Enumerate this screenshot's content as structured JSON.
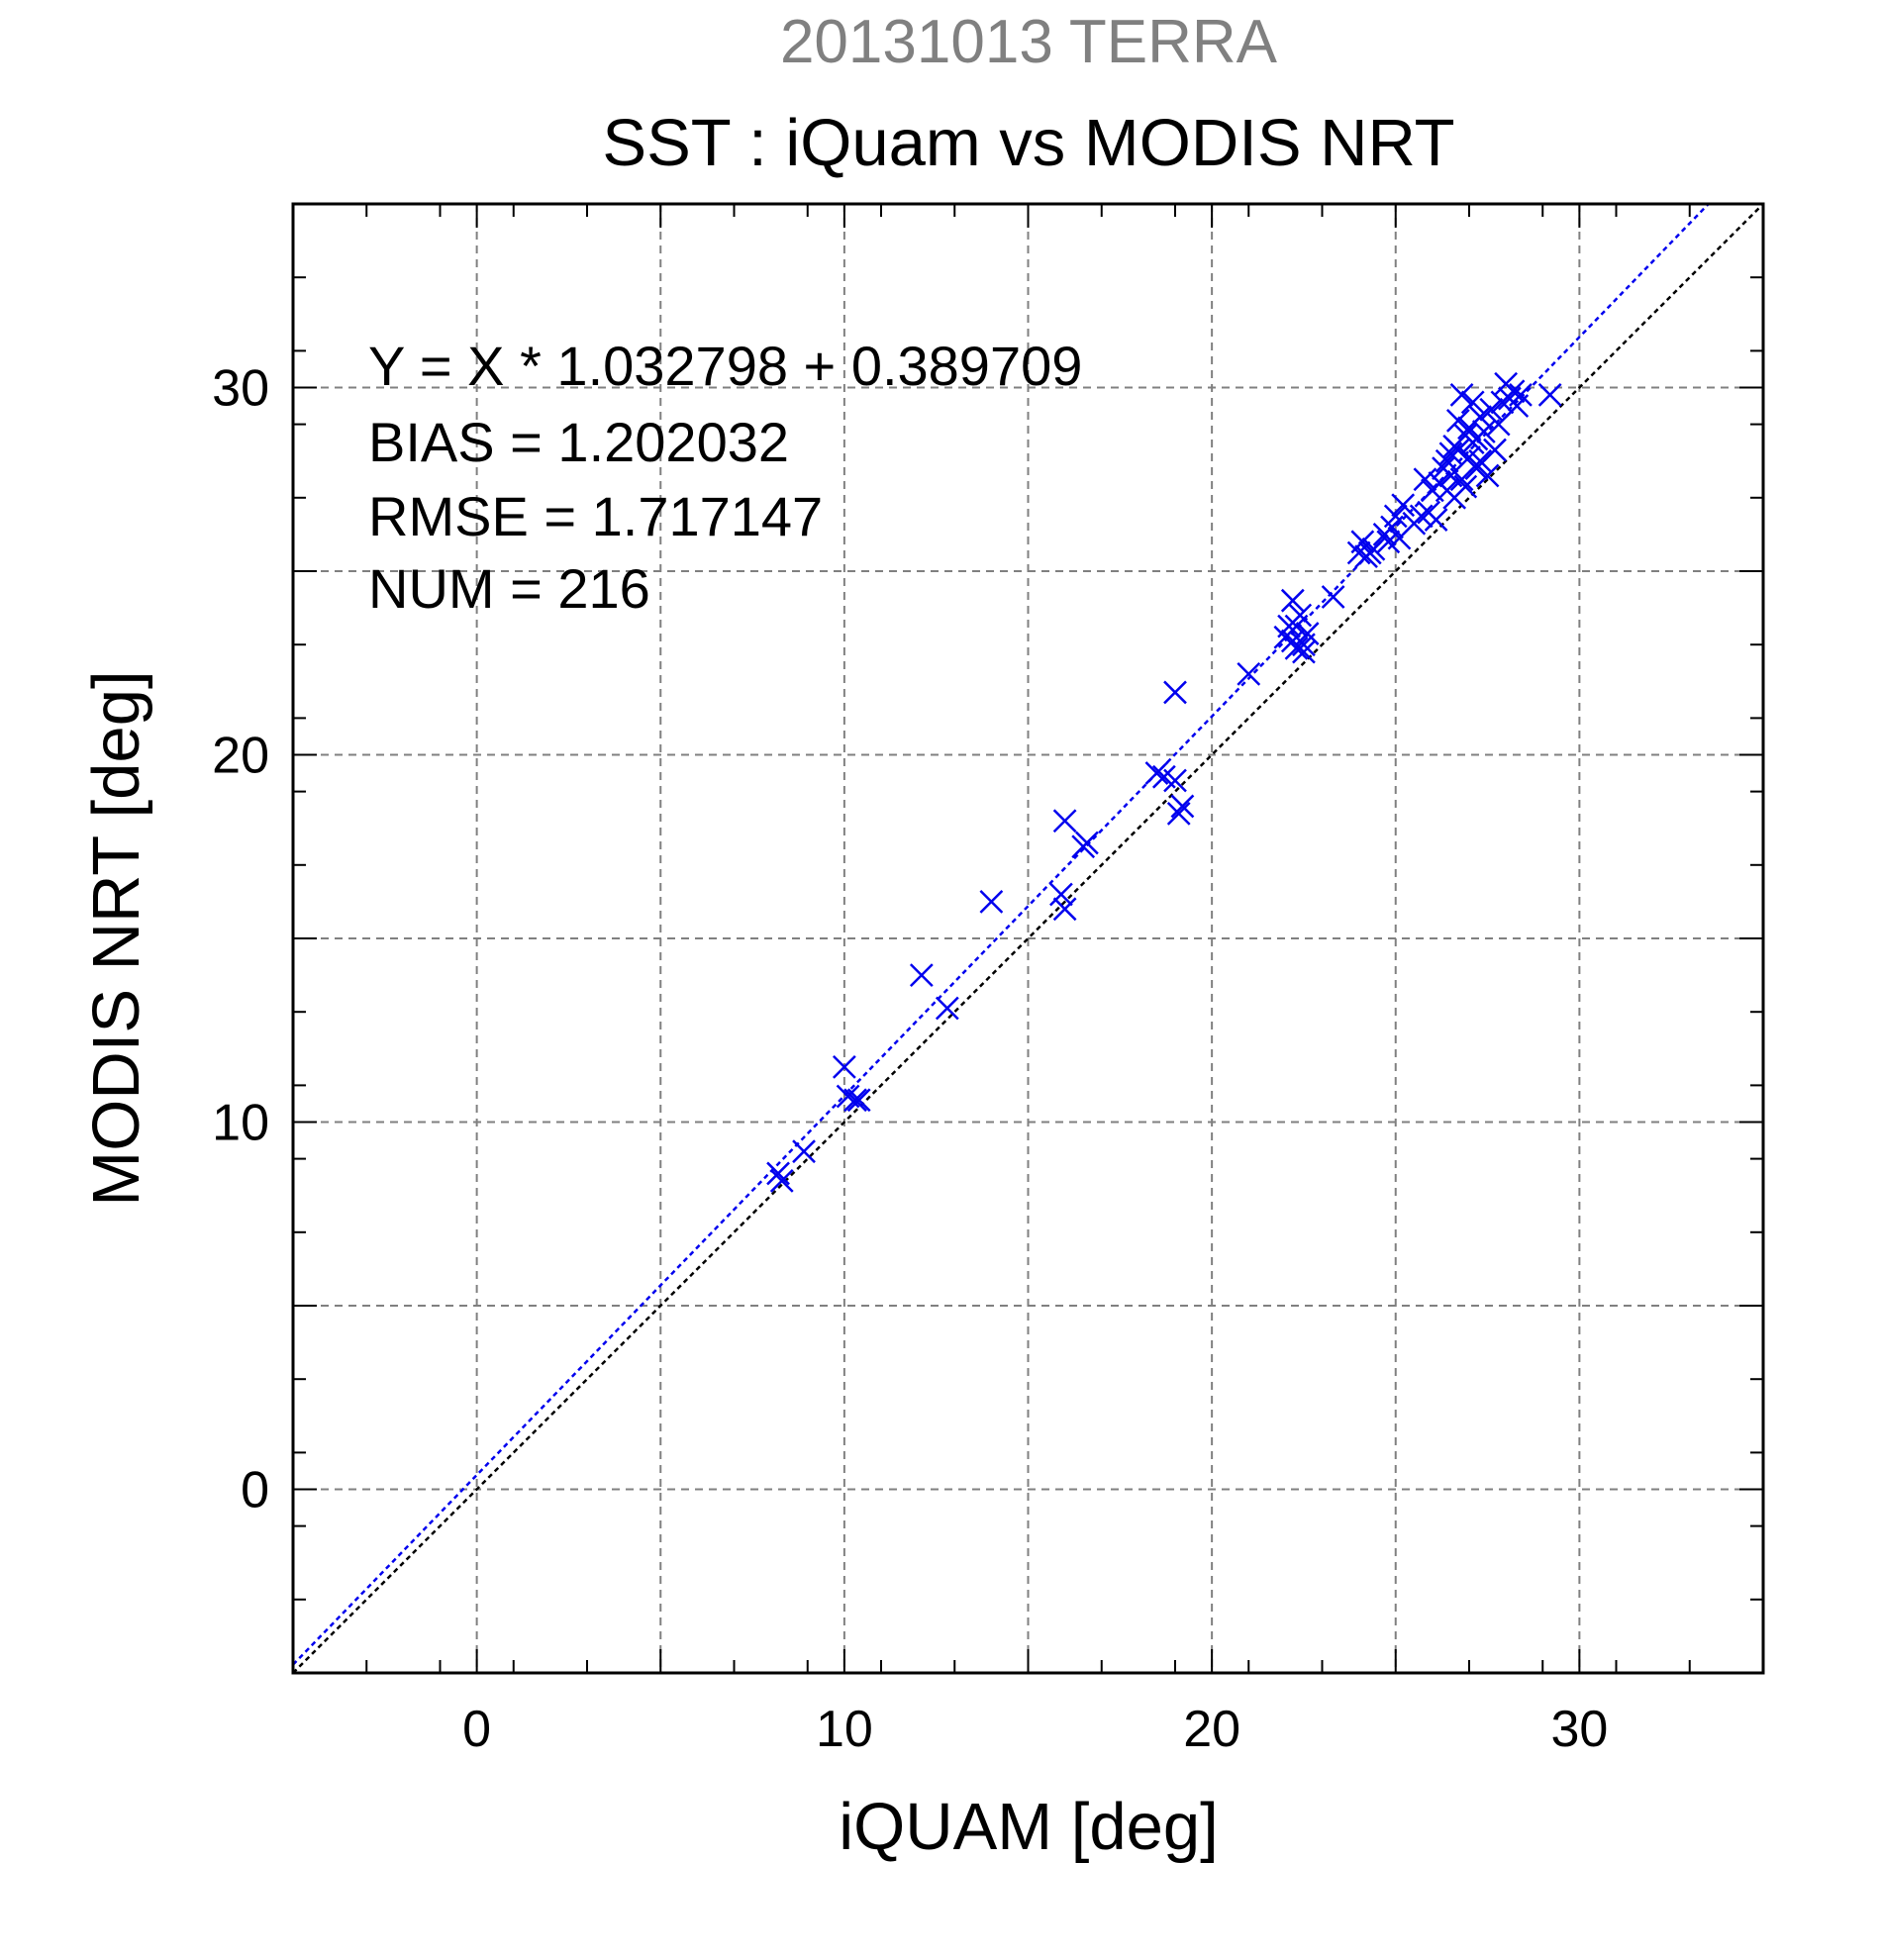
{
  "chart_data": {
    "type": "scatter",
    "supertitle": "20131013 TERRA",
    "title": "SST : iQuam vs MODIS NRT",
    "xlabel": "iQUAM [deg]",
    "ylabel": "MODIS NRT [deg]",
    "xlim": [
      -5,
      35
    ],
    "ylim": [
      -5,
      35
    ],
    "xticks": [
      0,
      10,
      20,
      30
    ],
    "yticks": [
      0,
      10,
      20,
      30
    ],
    "grid": true,
    "colors": {
      "points": "#0000ee",
      "fit_line": "#0000ee",
      "identity_line": "#000000",
      "supertitle": "#808080"
    },
    "annotations": [
      "Y = X * 1.032798 + 0.389709",
      "BIAS = 1.202032",
      "RMSE = 1.717147",
      "NUM = 216"
    ],
    "fit": {
      "slope": 1.032798,
      "intercept": 0.389709
    },
    "identity": {
      "slope": 1,
      "intercept": 0
    },
    "marker": "x",
    "series": [
      {
        "x": [
          8.2,
          8.3,
          8.9,
          10.0,
          10.1,
          10.3,
          10.4,
          12.1,
          12.8,
          14.0,
          15.9,
          16.0,
          16.0,
          16.5,
          16.6,
          18.5,
          18.7,
          19.0,
          19.0,
          19.1,
          19.2,
          21.0,
          22.0,
          22.1,
          22.2,
          22.2,
          22.3,
          22.3,
          22.4,
          22.5,
          22.5,
          22.6,
          23.3,
          24.0,
          24.1,
          24.2,
          24.3,
          24.4,
          24.7,
          24.8,
          24.9,
          25.0,
          25.1,
          25.2,
          25.5,
          25.7,
          25.8,
          25.9,
          26.0,
          26.1,
          26.2,
          26.3,
          26.4,
          26.4,
          26.5,
          26.5,
          26.6,
          26.6,
          26.7,
          26.7,
          26.8,
          26.8,
          26.9,
          26.9,
          27.0,
          27.0,
          27.1,
          27.1,
          27.2,
          27.2,
          27.3,
          27.3,
          27.4,
          27.5,
          27.6,
          27.7,
          27.8,
          27.9,
          28.0,
          28.1,
          28.2,
          28.3,
          28.4,
          29.2
        ],
        "y": [
          8.6,
          8.4,
          9.2,
          11.5,
          10.7,
          10.6,
          10.6,
          14.0,
          13.1,
          16.0,
          16.2,
          15.8,
          18.2,
          17.5,
          17.6,
          19.5,
          19.4,
          21.7,
          19.3,
          18.4,
          18.6,
          22.2,
          23.2,
          23.5,
          24.2,
          23.1,
          23.5,
          22.9,
          23.8,
          22.8,
          23.0,
          23.3,
          24.3,
          25.5,
          25.8,
          25.4,
          25.5,
          25.6,
          26.0,
          25.8,
          26.2,
          26.5,
          25.9,
          26.8,
          26.3,
          26.5,
          27.5,
          26.6,
          27.2,
          26.4,
          27.4,
          27.8,
          27.2,
          28.0,
          28.2,
          27.6,
          28.4,
          27.0,
          29.1,
          28.3,
          29.8,
          27.5,
          28.7,
          27.3,
          28.9,
          28.1,
          28.5,
          29.6,
          27.8,
          28.6,
          29.2,
          28.0,
          28.8,
          27.6,
          29.4,
          28.3,
          29.0,
          29.6,
          30.1,
          29.7,
          29.9,
          29.5,
          29.8,
          29.8
        ]
      }
    ]
  }
}
